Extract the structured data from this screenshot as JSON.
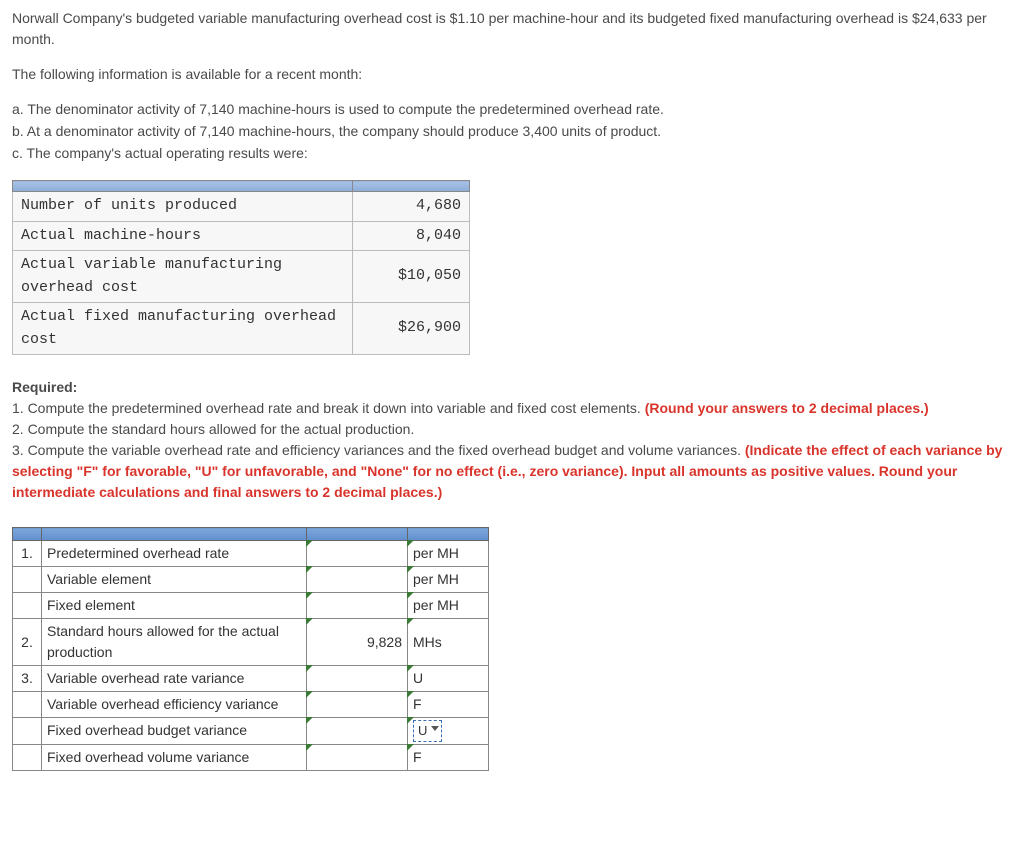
{
  "intro": {
    "p1": "Norwall Company's budgeted variable manufacturing overhead cost is $1.10 per machine-hour and its budgeted fixed manufacturing overhead is $24,633 per month.",
    "p2": "The following information is available for a recent month:"
  },
  "list": {
    "a": "a.  The denominator activity of 7,140 machine-hours is used to compute the predetermined overhead rate.",
    "b": "b.  At a denominator activity of 7,140 machine-hours, the company should produce 3,400 units of product.",
    "c": "c.  The company's actual operating results were:"
  },
  "data_table": {
    "rows": [
      {
        "label": "Number of units produced",
        "value": "4,680"
      },
      {
        "label": "Actual machine-hours",
        "value": "8,040"
      },
      {
        "label": "Actual variable manufacturing overhead cost",
        "value": "$10,050"
      },
      {
        "label": "Actual fixed manufacturing overhead cost",
        "value": "$26,900"
      }
    ]
  },
  "required": {
    "heading": "Required:",
    "l1a": "1. Compute the predetermined overhead rate and break it down into variable and fixed cost elements. ",
    "l1b": "(Round your answers to 2 decimal places.)",
    "l2": "2. Compute the standard hours allowed for the actual production.",
    "l3a": "3. Compute the variable overhead rate and efficiency variances and the fixed overhead budget and volume variances. ",
    "l3b": "(Indicate the effect of each variance by selecting \"F\" for favorable, \"U\" for unfavorable, and \"None\" for no effect (i.e., zero variance). Input all amounts as positive values. Round your intermediate calculations and final answers to 2 decimal places.)"
  },
  "answer": {
    "rows": [
      {
        "n": "1.",
        "label": "Predetermined overhead rate",
        "val": "",
        "unit": "per MH",
        "tick": true
      },
      {
        "n": "",
        "label": "Variable element",
        "val": "",
        "unit": "per MH",
        "tick": true
      },
      {
        "n": "",
        "label": "Fixed element",
        "val": "",
        "unit": "per MH",
        "tick": true
      },
      {
        "n": "2.",
        "label": "Standard hours allowed for the actual production",
        "val": "9,828",
        "unit": "MHs",
        "tick": true
      },
      {
        "n": "3.",
        "label": "Variable overhead rate variance",
        "val": "",
        "unit": "U",
        "tick": true
      },
      {
        "n": "",
        "label": "Variable overhead efficiency variance",
        "val": "",
        "unit": "F",
        "tick": true
      },
      {
        "n": "",
        "label": "Fixed overhead budget variance",
        "val": "",
        "unit": "U",
        "tick": true,
        "select": true
      },
      {
        "n": "",
        "label": "Fixed overhead volume variance",
        "val": "",
        "unit": "F",
        "tick": true
      }
    ]
  }
}
